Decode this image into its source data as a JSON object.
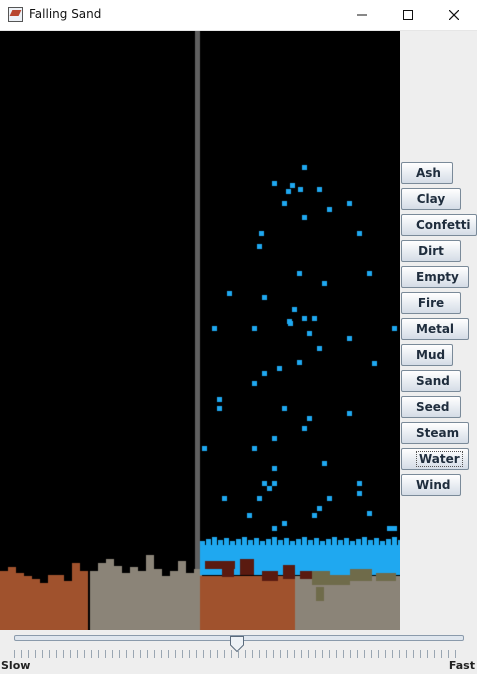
{
  "window": {
    "title": "Falling Sand",
    "minimize_icon": "minimize-icon",
    "maximize_icon": "maximize-icon",
    "close_icon": "close-icon",
    "app_icon": "falling-sand-app-icon"
  },
  "tools": [
    {
      "label": "Ash"
    },
    {
      "label": "Clay"
    },
    {
      "label": "Confetti"
    },
    {
      "label": "Dirt"
    },
    {
      "label": "Empty"
    },
    {
      "label": "Fire"
    },
    {
      "label": "Metal"
    },
    {
      "label": "Mud"
    },
    {
      "label": "Sand"
    },
    {
      "label": "Seed"
    },
    {
      "label": "Steam"
    },
    {
      "label": "Water",
      "focused": true
    },
    {
      "label": "Wind"
    }
  ],
  "speed": {
    "min_label": "Slow",
    "max_label": "Fast",
    "value_fraction": 0.5
  },
  "colors": {
    "empty": "#000000",
    "metal": "#606060",
    "dirt": "#a0522d",
    "clay": "#8b8478",
    "water": "#1fa8f0",
    "mud": "#5a1a10",
    "sand_mix": "#6f6b4a"
  }
}
